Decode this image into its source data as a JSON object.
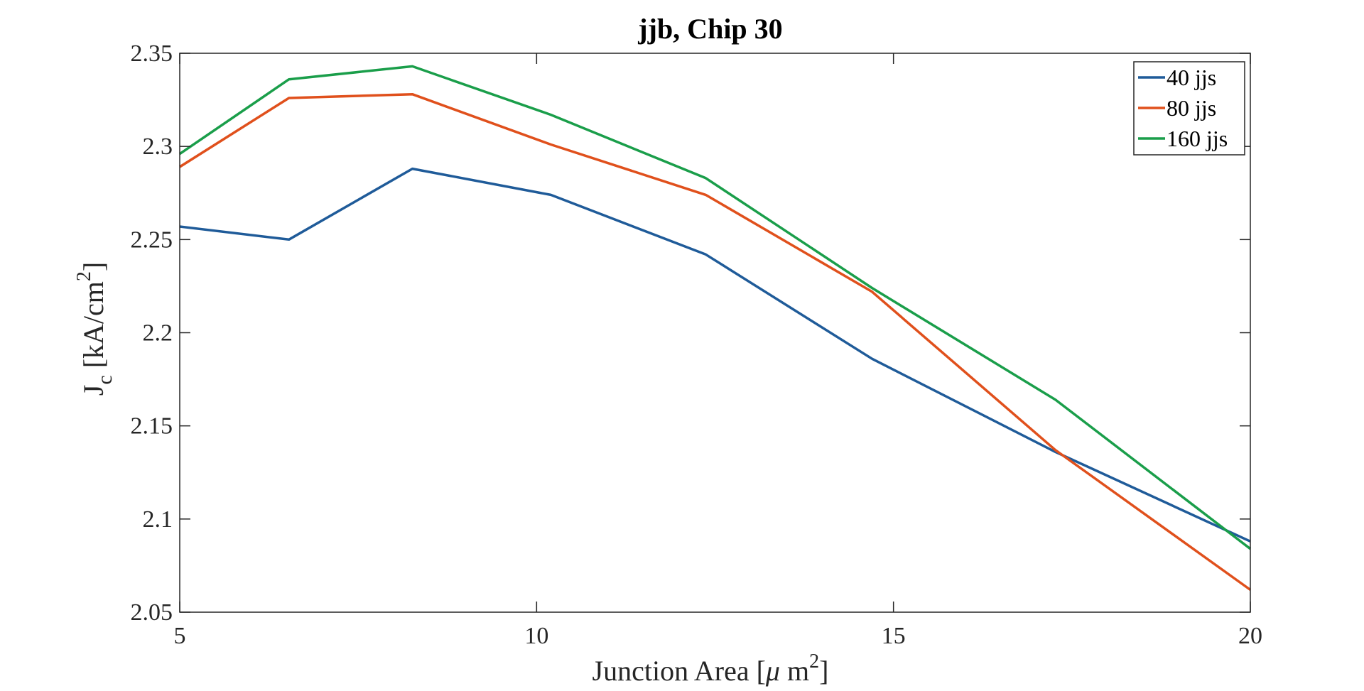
{
  "chart_data": {
    "type": "line",
    "title": "jjb, Chip 30",
    "xlabel": {
      "prefix": "Junction Area [",
      "mu": "μ",
      "unit": " m",
      "sup": "2",
      "suffix": "]"
    },
    "ylabel": {
      "main": "J",
      "sub": "c",
      "unit": " [kA/cm",
      "sup": "2",
      "suffix": "]"
    },
    "xlim": [
      5,
      20
    ],
    "ylim": [
      2.05,
      2.35
    ],
    "xticks": [
      5,
      10,
      15,
      20
    ],
    "xtick_labels": [
      "5",
      "10",
      "15",
      "20"
    ],
    "yticks": [
      2.05,
      2.1,
      2.15,
      2.2,
      2.25,
      2.3,
      2.35
    ],
    "ytick_labels": [
      "2.05",
      "2.1",
      "2.15",
      "2.2",
      "2.25",
      "2.3",
      "2.35"
    ],
    "grid": false,
    "legend_position": "top-right",
    "x": [
      5,
      6.53,
      8.26,
      10.2,
      12.37,
      14.7,
      17.27,
      20
    ],
    "series": [
      {
        "name": "40 jjs",
        "color": "#1f5b99",
        "values": [
          2.257,
          2.25,
          2.288,
          2.274,
          2.242,
          2.186,
          2.136,
          2.088
        ]
      },
      {
        "name": "80 jjs",
        "color": "#e0501c",
        "values": [
          2.289,
          2.326,
          2.328,
          2.301,
          2.274,
          2.222,
          2.137,
          2.062
        ]
      },
      {
        "name": "160 jjs",
        "color": "#1a9e4a",
        "values": [
          2.296,
          2.336,
          2.343,
          2.317,
          2.283,
          2.224,
          2.164,
          2.084
        ]
      }
    ]
  }
}
